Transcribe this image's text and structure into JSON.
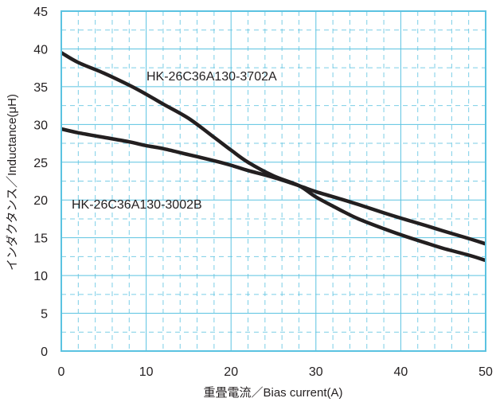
{
  "chart_data": {
    "type": "line",
    "xlabel": "重畳電流／Bias current(A)",
    "ylabel": "インダクタンス／Inductance(μH)",
    "xlim": [
      0,
      50
    ],
    "ylim": [
      0,
      45
    ],
    "xticks": [
      0,
      10,
      20,
      30,
      40,
      50
    ],
    "yticks": [
      0,
      5,
      10,
      15,
      20,
      25,
      30,
      35,
      40,
      45
    ],
    "grid": true,
    "colors": {
      "frame": "#5bc3e1",
      "grid": "#5bc3e1",
      "line": "#231f20",
      "text": "#231f20"
    },
    "series": [
      {
        "name": "HK-26C36A130-3702A",
        "x": [
          0,
          2,
          5,
          8,
          10,
          12,
          15,
          18,
          20,
          22,
          25,
          28,
          30,
          33,
          35,
          38,
          40,
          43,
          45,
          48,
          50
        ],
        "y": [
          39.5,
          38.2,
          36.8,
          35.2,
          34.0,
          32.7,
          30.8,
          28.3,
          26.6,
          25.0,
          23.2,
          21.9,
          20.4,
          18.6,
          17.5,
          16.2,
          15.4,
          14.3,
          13.6,
          12.7,
          12.0
        ]
      },
      {
        "name": "HK-26C36A130-3002B",
        "x": [
          0,
          2,
          5,
          8,
          10,
          12,
          15,
          18,
          20,
          22,
          25,
          28,
          30,
          33,
          35,
          38,
          40,
          43,
          45,
          48,
          50
        ],
        "y": [
          29.4,
          28.9,
          28.3,
          27.7,
          27.2,
          26.8,
          26.0,
          25.2,
          24.6,
          23.9,
          23.0,
          21.9,
          21.1,
          20.1,
          19.4,
          18.3,
          17.6,
          16.6,
          15.9,
          14.9,
          14.2
        ]
      }
    ]
  }
}
